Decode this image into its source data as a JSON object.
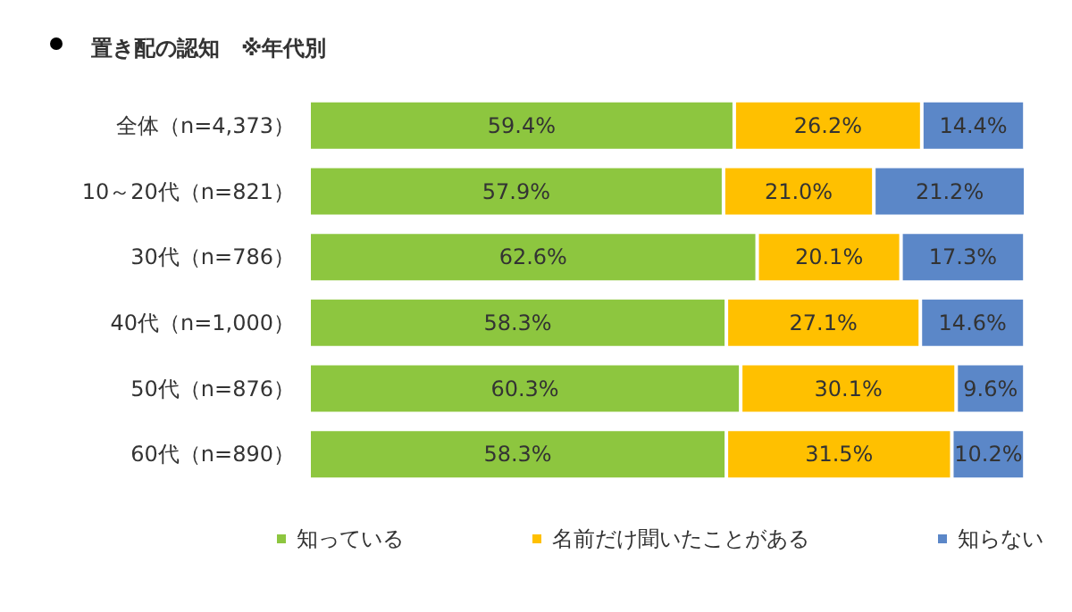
{
  "chart_data": {
    "type": "bar",
    "orientation": "horizontal",
    "stacked": true,
    "title": "置き配の認知　※年代別",
    "categories": [
      "全体（n=4,373）",
      "10～20代（n=821）",
      "30代（n=786）",
      "40代（n=1,000）",
      "50代（n=876）",
      "60代（n=890）"
    ],
    "series": [
      {
        "name": "知っている",
        "color": "#8dc63f",
        "values": [
          59.4,
          57.9,
          62.6,
          58.3,
          60.3,
          58.3
        ],
        "value_labels": [
          "59.4%",
          "57.9%",
          "62.6%",
          "58.3%",
          "60.3%",
          "58.3%"
        ]
      },
      {
        "name": "名前だけ聞いたことがある",
        "color": "#ffc000",
        "values": [
          26.2,
          21.0,
          20.1,
          27.1,
          30.1,
          31.5
        ],
        "value_labels": [
          "26.2%",
          "21.0%",
          "20.1%",
          "27.1%",
          "30.1%",
          "31.5%"
        ]
      },
      {
        "name": "知らない",
        "color": "#5b87c8",
        "values": [
          14.4,
          21.2,
          17.3,
          14.6,
          9.6,
          10.2
        ],
        "value_labels": [
          "14.4%",
          "21.2%",
          "17.3%",
          "14.6%",
          "9.6%",
          "10.2%"
        ]
      }
    ],
    "tick_labels": "y",
    "grid": false,
    "legend": "bottom"
  }
}
